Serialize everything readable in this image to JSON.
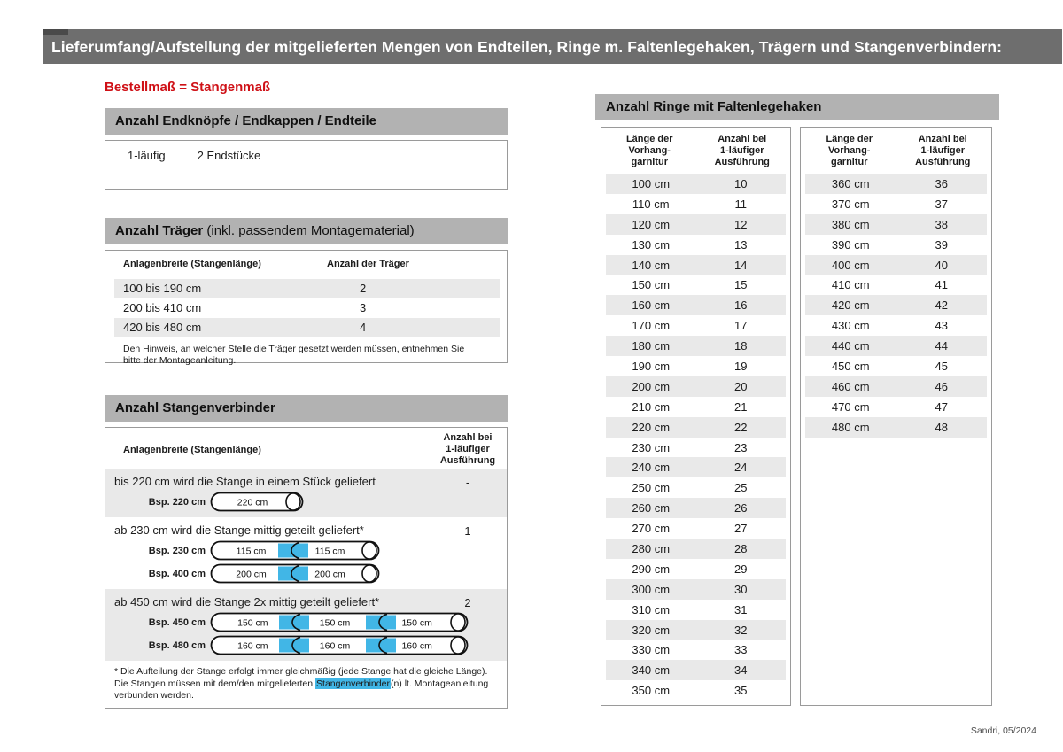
{
  "colors": {
    "accent_red": "#cf1016",
    "connector_blue": "#41b6e6",
    "bar_gray": "#6e6e6e",
    "header_gray": "#b2b2b2",
    "stripe_gray": "#e9e9e9"
  },
  "page": {
    "title": "Lieferumfang/Aufstellung der mitgelieferten Mengen von Endteilen, Ringe m. Faltenlegehaken, Trägern und Stangenverbindern:",
    "subtitle": "Bestellmaß = Stangenmaß",
    "footer": "Sandri, 05/2024"
  },
  "endteile": {
    "header": "Anzahl Endknöpfe / Endkappen / Endteile",
    "rows": [
      {
        "label": "1-läufig",
        "value": "2 Endstücke"
      }
    ]
  },
  "traeger": {
    "header_bold": "Anzahl Träger",
    "header_rest": " (inkl. passendem Montagematerial)",
    "col1": "Anlagenbreite (Stangenlänge)",
    "col2": "Anzahl der Träger",
    "rows": [
      [
        "100 bis 190 cm",
        "2"
      ],
      [
        "200 bis 410 cm",
        "3"
      ],
      [
        "420 bis 480 cm",
        "4"
      ]
    ],
    "note": "Den Hinweis, an welcher Stelle die Träger gesetzt werden müssen, entnehmen Sie bitte der Montageanleitung."
  },
  "verbinder": {
    "header": "Anzahl Stangenverbinder",
    "col1": "Anlagenbreite (Stangenlänge)",
    "col2": [
      "Anzahl bei",
      "1-läufiger",
      "Ausführung"
    ],
    "rows": [
      {
        "text": "bis 220 cm wird die Stange in einem Stück geliefert",
        "count": "-",
        "rods": [
          {
            "label": "Bsp. 220 cm",
            "segments": [
              "220 cm"
            ]
          }
        ]
      },
      {
        "text": "ab 230 cm wird die Stange mittig geteilt geliefert*",
        "count": "1",
        "rods": [
          {
            "label": "Bsp. 230 cm",
            "segments": [
              "115 cm",
              "115 cm"
            ]
          },
          {
            "label": "Bsp. 400 cm",
            "segments": [
              "200 cm",
              "200 cm"
            ]
          }
        ]
      },
      {
        "text": "ab 450 cm wird die Stange 2x mittig geteilt geliefert*",
        "count": "2",
        "rods": [
          {
            "label": "Bsp. 450 cm",
            "segments": [
              "150 cm",
              "150 cm",
              "150 cm"
            ]
          },
          {
            "label": "Bsp. 480 cm",
            "segments": [
              "160 cm",
              "160 cm",
              "160 cm"
            ]
          }
        ]
      }
    ],
    "footnote_pre": "* Die Aufteilung der Stange erfolgt immer gleichmäßig (jede Stange hat die gleiche Länge). Die Stangen müssen mit dem/den mitgelieferten ",
    "footnote_highlight": "Stangenverbinder",
    "footnote_post": "(n) lt. Montageanleitung verbunden werden."
  },
  "ringe": {
    "header": "Anzahl Ringe mit Faltenlegehaken",
    "col1": [
      "Länge der",
      "Vorhang-",
      "garnitur"
    ],
    "col2": [
      "Anzahl bei",
      "1-läufiger",
      "Ausführung"
    ],
    "tables": [
      {
        "rows": [
          [
            "100 cm",
            "10"
          ],
          [
            "110 cm",
            "11"
          ],
          [
            "120 cm",
            "12"
          ],
          [
            "130 cm",
            "13"
          ],
          [
            "140 cm",
            "14"
          ],
          [
            "150 cm",
            "15"
          ],
          [
            "160 cm",
            "16"
          ],
          [
            "170 cm",
            "17"
          ],
          [
            "180 cm",
            "18"
          ],
          [
            "190 cm",
            "19"
          ],
          [
            "200 cm",
            "20"
          ],
          [
            "210 cm",
            "21"
          ],
          [
            "220 cm",
            "22"
          ],
          [
            "230 cm",
            "23"
          ],
          [
            "240 cm",
            "24"
          ],
          [
            "250 cm",
            "25"
          ],
          [
            "260 cm",
            "26"
          ],
          [
            "270 cm",
            "27"
          ],
          [
            "280 cm",
            "28"
          ],
          [
            "290 cm",
            "29"
          ],
          [
            "300 cm",
            "30"
          ],
          [
            "310 cm",
            "31"
          ],
          [
            "320 cm",
            "32"
          ],
          [
            "330 cm",
            "33"
          ],
          [
            "340 cm",
            "34"
          ],
          [
            "350 cm",
            "35"
          ]
        ]
      },
      {
        "rows": [
          [
            "360 cm",
            "36"
          ],
          [
            "370 cm",
            "37"
          ],
          [
            "380 cm",
            "38"
          ],
          [
            "390 cm",
            "39"
          ],
          [
            "400 cm",
            "40"
          ],
          [
            "410 cm",
            "41"
          ],
          [
            "420 cm",
            "42"
          ],
          [
            "430 cm",
            "43"
          ],
          [
            "440 cm",
            "44"
          ],
          [
            "450 cm",
            "45"
          ],
          [
            "460 cm",
            "46"
          ],
          [
            "470 cm",
            "47"
          ],
          [
            "480 cm",
            "48"
          ]
        ]
      }
    ]
  }
}
